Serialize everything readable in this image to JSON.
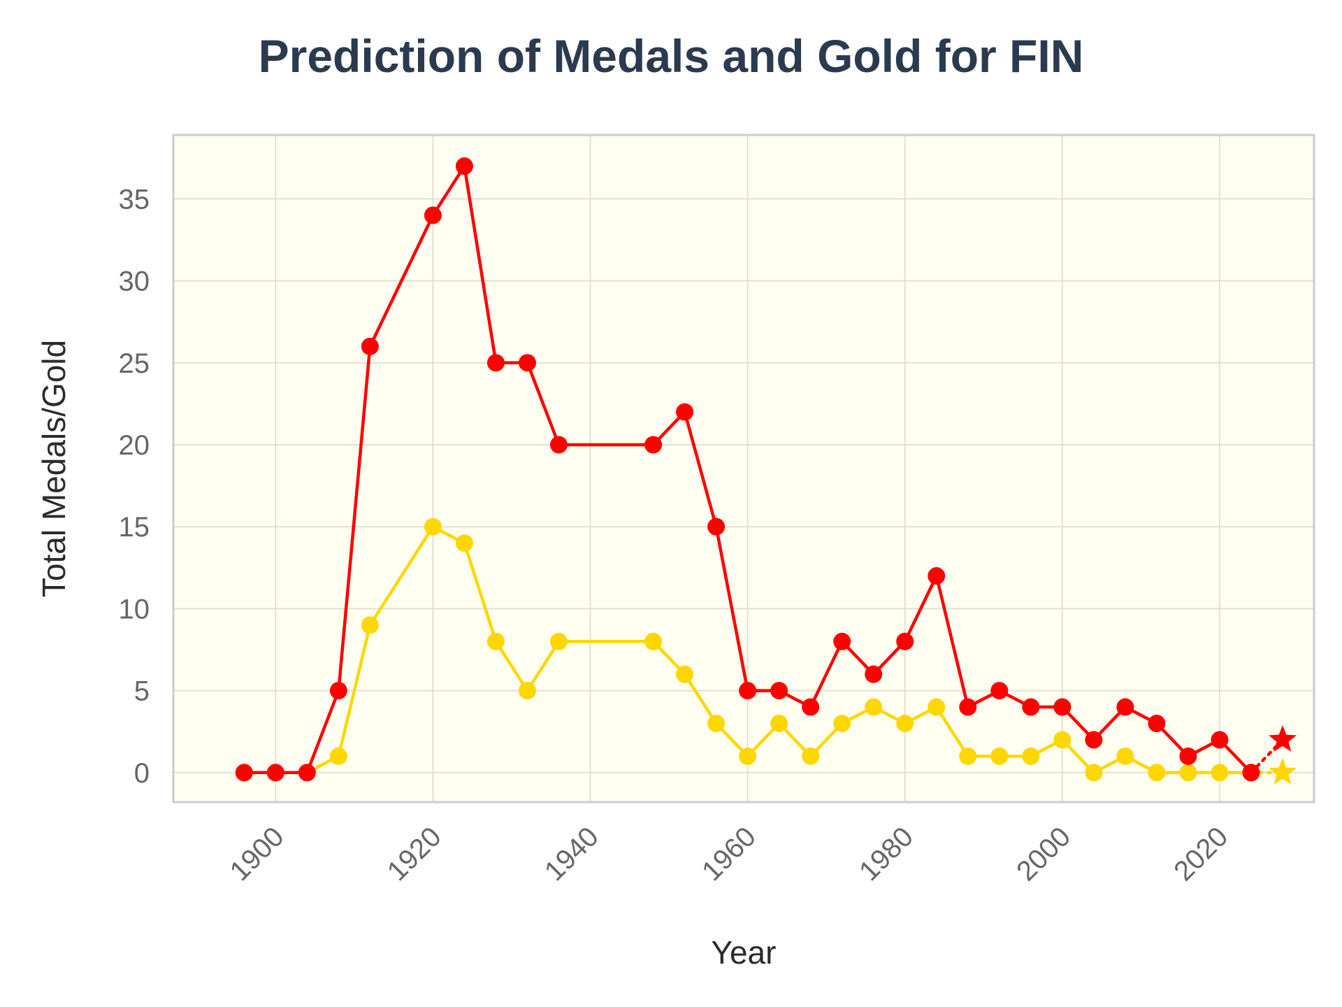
{
  "chart_data": {
    "type": "line",
    "title": "Prediction of Medals and Gold for FIN",
    "xlabel": "Year",
    "ylabel": "Total Medals/Gold",
    "xlim": [
      1887,
      2032
    ],
    "ylim": [
      -1.8,
      38.9
    ],
    "xticks": [
      1900,
      1920,
      1940,
      1960,
      1980,
      2000,
      2020
    ],
    "yticks": [
      0,
      5,
      10,
      15,
      20,
      25,
      30,
      35
    ],
    "grid": true,
    "background_color": "#fefff0",
    "series": [
      {
        "color": "#ff0000",
        "x": [
          1896,
          1900,
          1904,
          1908,
          1912,
          1920,
          1924,
          1928,
          1932,
          1936,
          1948,
          1952,
          1956,
          1960,
          1964,
          1968,
          1972,
          1976,
          1980,
          1984,
          1988,
          1992,
          1996,
          2000,
          2004,
          2008,
          2012,
          2016,
          2020,
          2024
        ],
        "y": [
          0,
          0,
          0,
          5,
          26,
          34,
          37,
          25,
          25,
          20,
          20,
          22,
          15,
          5,
          5,
          4,
          8,
          6,
          8,
          12,
          4,
          5,
          4,
          4,
          2,
          4,
          3,
          1,
          2,
          0
        ],
        "prediction": {
          "x": 2028,
          "y": 2
        }
      },
      {
        "color": "#ffd700",
        "x": [
          1896,
          1900,
          1904,
          1908,
          1912,
          1920,
          1924,
          1928,
          1932,
          1936,
          1948,
          1952,
          1956,
          1960,
          1964,
          1968,
          1972,
          1976,
          1980,
          1984,
          1988,
          1992,
          1996,
          2000,
          2004,
          2008,
          2012,
          2016,
          2020,
          2024
        ],
        "y": [
          0,
          0,
          0,
          1,
          9,
          15,
          14,
          8,
          5,
          8,
          8,
          6,
          3,
          1,
          3,
          1,
          3,
          4,
          3,
          4,
          1,
          1,
          1,
          2,
          0,
          1,
          0,
          0,
          0,
          0
        ],
        "prediction": {
          "x": 2028,
          "y": 0
        }
      }
    ]
  }
}
